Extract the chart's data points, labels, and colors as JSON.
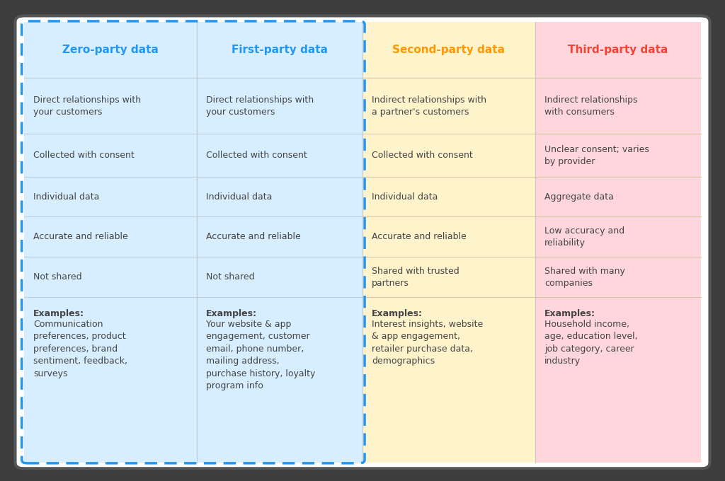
{
  "columns": [
    "Zero-party data",
    "First-party data",
    "Second-party data",
    "Third-party data"
  ],
  "header_colors": [
    "#2196F3",
    "#2196F3",
    "#FF9800",
    "#F44336"
  ],
  "col_bg_colors": [
    "#D6EEFF",
    "#D6EEFF",
    "#FFF3CC",
    "#FFD6DC"
  ],
  "rows": [
    [
      "Direct relationships with\nyour customers",
      "Direct relationships with\nyour customers",
      "Indirect relationships with\na partner's customers",
      "Indirect relationships\nwith consumers"
    ],
    [
      "Collected with consent",
      "Collected with consent",
      "Collected with consent",
      "Unclear consent; varies\nby provider"
    ],
    [
      "Individual data",
      "Individual data",
      "Individual data",
      "Aggregate data"
    ],
    [
      "Accurate and reliable",
      "Accurate and reliable",
      "Accurate and reliable",
      "Low accuracy and\nreliability"
    ],
    [
      "Not shared",
      "Not shared",
      "Shared with trusted\npartners",
      "Shared with many\ncompanies"
    ],
    [
      "Examples:\nCommunication\npreferences, product\npreferences, brand\nsentiment, feedback,\nsurveys",
      "Examples:\nYour website & app\nengagement, customer\nemail, phone number,\nmailing address,\npurchase history, loyalty\nprogram info",
      "Examples:\nInterest insights, website\n& app engagement,\nretailer purchase data,\ndemographics",
      "Examples:\nHousehold income,\nage, education level,\njob category, career\nindustry"
    ]
  ],
  "bg_color": "#3D3D3D",
  "card_bg": "#FFFFFF",
  "text_color": "#444444",
  "grid_color_left": "#C0D0E0",
  "grid_color_right": "#D8C8A8",
  "dashed_border_color": "#2196F3",
  "font_size_header": 11,
  "font_size_body": 9
}
